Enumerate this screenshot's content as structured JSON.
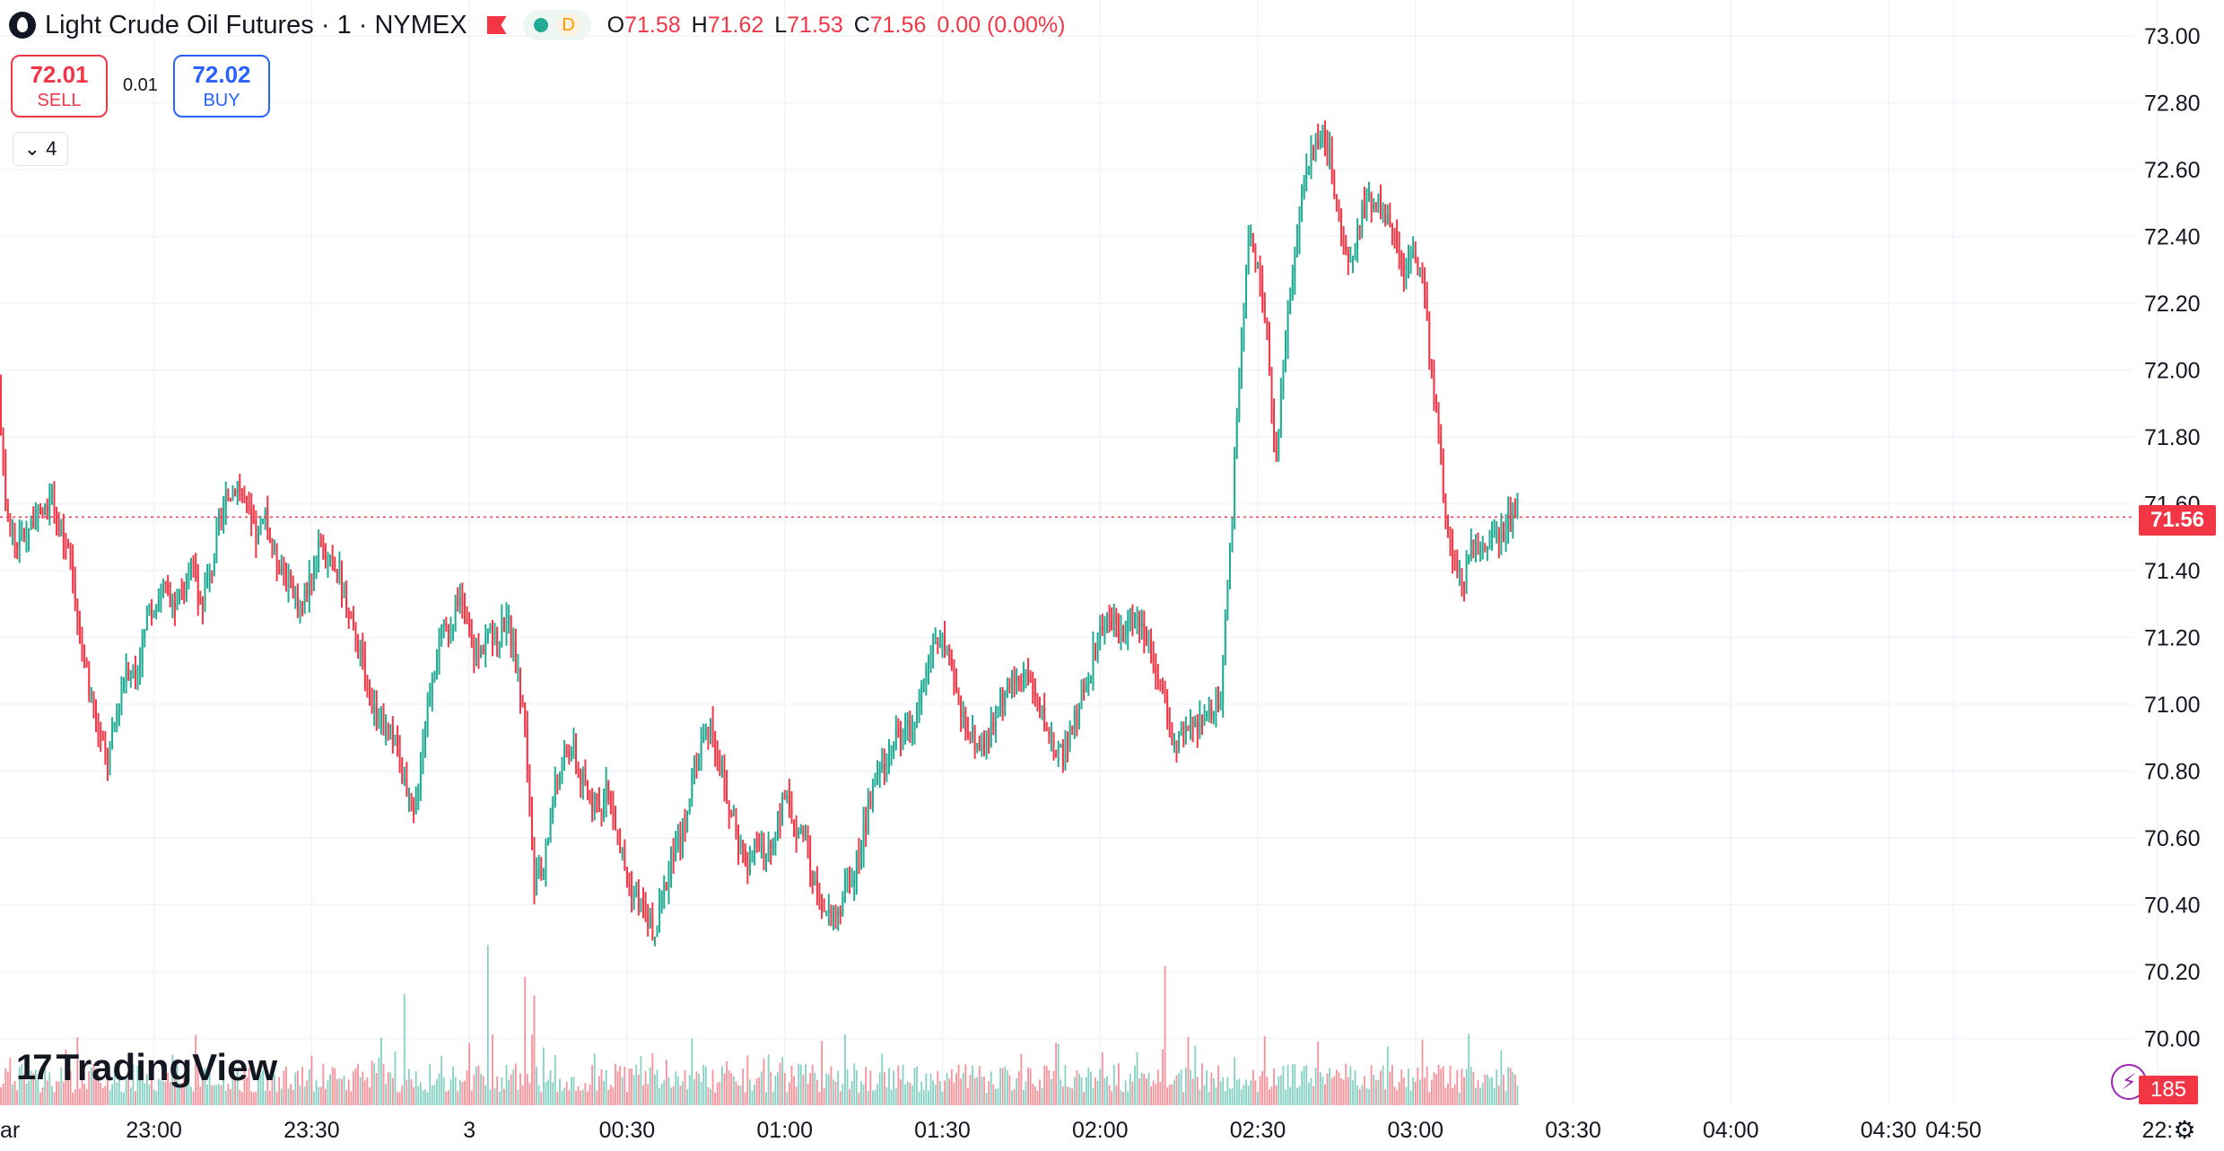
{
  "header": {
    "symbol_title": "Light Crude Oil Futures · 1 · NYMEX",
    "indicator_letter": "D",
    "ohlc": {
      "o_label": "O",
      "o": "71.58",
      "h_label": "H",
      "h": "71.62",
      "l_label": "L",
      "l": "71.53",
      "c_label": "C",
      "c": "71.56",
      "change": "0.00 (0.00%)"
    }
  },
  "trade": {
    "sell_price": "72.01",
    "sell_label": "SELL",
    "spread": "0.01",
    "buy_price": "72.02",
    "buy_label": "BUY"
  },
  "collapse": {
    "count": "4"
  },
  "watermark": "TradingView",
  "last_price_label": "71.56",
  "volume_label": "185",
  "colors": {
    "up": "#22ab94",
    "down": "#f23645",
    "grid": "#f0f3fa",
    "axis_text": "#131722"
  },
  "icons": [
    "oil-drop-icon",
    "flag-icon",
    "chevron-down-icon",
    "lightning-icon",
    "gear-icon"
  ],
  "chart_data": {
    "type": "candlestick",
    "ylim": [
      69.98,
      73.0
    ],
    "y_ticks": [
      "73.00",
      "72.80",
      "72.60",
      "72.40",
      "72.20",
      "72.00",
      "71.80",
      "71.60",
      "71.40",
      "71.20",
      "71.00",
      "70.80",
      "70.60",
      "70.40",
      "70.20",
      "70.00"
    ],
    "x_ticks": [
      "23:00",
      "23:30",
      "3",
      "00:30",
      "01:00",
      "01:30",
      "02:00",
      "02:30",
      "03:00",
      "03:30",
      "04:00",
      "04:30",
      "04:50",
      "22:"
    ],
    "x_tick_values": [
      11,
      28,
      45,
      62,
      79,
      96,
      113,
      130,
      147,
      164,
      181,
      198,
      205,
      227
    ],
    "x_range": [
      -5.6,
      224.4
    ],
    "first_x_label": "ar",
    "current_price": 71.56,
    "anchors": [
      [
        -6,
        72.08
      ],
      [
        -5,
        71.62
      ],
      [
        -4,
        71.48
      ],
      [
        -2,
        71.55
      ],
      [
        0,
        71.6
      ],
      [
        1,
        71.5
      ],
      [
        2,
        71.43
      ],
      [
        3,
        71.2
      ],
      [
        4,
        71.05
      ],
      [
        5,
        70.92
      ],
      [
        6,
        70.83
      ],
      [
        7,
        70.98
      ],
      [
        8,
        71.12
      ],
      [
        9,
        71.08
      ],
      [
        10,
        71.22
      ],
      [
        11,
        71.3
      ],
      [
        12,
        71.35
      ],
      [
        13,
        71.28
      ],
      [
        14,
        71.32
      ],
      [
        15,
        71.45
      ],
      [
        16,
        71.3
      ],
      [
        17,
        71.38
      ],
      [
        18,
        71.52
      ],
      [
        19,
        71.62
      ],
      [
        20,
        71.67
      ],
      [
        21,
        71.58
      ],
      [
        22,
        71.5
      ],
      [
        23,
        71.55
      ],
      [
        24,
        71.45
      ],
      [
        25,
        71.4
      ],
      [
        26,
        71.32
      ],
      [
        27,
        71.3
      ],
      [
        28,
        71.4
      ],
      [
        29,
        71.47
      ],
      [
        30,
        71.42
      ],
      [
        31,
        71.38
      ],
      [
        32,
        71.25
      ],
      [
        33,
        71.18
      ],
      [
        34,
        71.06
      ],
      [
        35,
        70.96
      ],
      [
        36,
        70.92
      ],
      [
        37,
        70.9
      ],
      [
        38,
        70.75
      ],
      [
        39,
        70.65
      ],
      [
        40,
        70.9
      ],
      [
        41,
        71.1
      ],
      [
        42,
        71.2
      ],
      [
        43,
        71.25
      ],
      [
        44,
        71.3
      ],
      [
        45,
        71.2
      ],
      [
        46,
        71.14
      ],
      [
        47,
        71.22
      ],
      [
        48,
        71.18
      ],
      [
        49,
        71.28
      ],
      [
        50,
        71.12
      ],
      [
        51,
        70.95
      ],
      [
        52,
        70.45
      ],
      [
        53,
        70.5
      ],
      [
        54,
        70.72
      ],
      [
        55,
        70.82
      ],
      [
        56,
        70.88
      ],
      [
        57,
        70.78
      ],
      [
        58,
        70.72
      ],
      [
        59,
        70.68
      ],
      [
        60,
        70.75
      ],
      [
        61,
        70.6
      ],
      [
        62,
        70.48
      ],
      [
        63,
        70.42
      ],
      [
        64,
        70.38
      ],
      [
        65,
        70.3
      ],
      [
        66,
        70.45
      ],
      [
        67,
        70.55
      ],
      [
        68,
        70.62
      ],
      [
        69,
        70.78
      ],
      [
        70,
        70.88
      ],
      [
        71,
        70.95
      ],
      [
        72,
        70.82
      ],
      [
        73,
        70.68
      ],
      [
        74,
        70.6
      ],
      [
        75,
        70.52
      ],
      [
        76,
        70.58
      ],
      [
        77,
        70.55
      ],
      [
        78,
        70.62
      ],
      [
        79,
        70.72
      ],
      [
        80,
        70.65
      ],
      [
        81,
        70.6
      ],
      [
        82,
        70.48
      ],
      [
        83,
        70.4
      ],
      [
        84,
        70.36
      ],
      [
        85,
        70.4
      ],
      [
        86,
        70.46
      ],
      [
        87,
        70.55
      ],
      [
        88,
        70.68
      ],
      [
        89,
        70.78
      ],
      [
        90,
        70.85
      ],
      [
        91,
        70.9
      ],
      [
        92,
        70.92
      ],
      [
        93,
        70.95
      ],
      [
        94,
        71.08
      ],
      [
        95,
        71.18
      ],
      [
        96,
        71.2
      ],
      [
        97,
        71.08
      ],
      [
        98,
        70.98
      ],
      [
        99,
        70.92
      ],
      [
        100,
        70.88
      ],
      [
        101,
        70.9
      ],
      [
        102,
        71.0
      ],
      [
        103,
        71.05
      ],
      [
        104,
        71.08
      ],
      [
        105,
        71.1
      ],
      [
        106,
        71.02
      ],
      [
        107,
        70.95
      ],
      [
        108,
        70.88
      ],
      [
        109,
        70.85
      ],
      [
        110,
        70.92
      ],
      [
        111,
        71.02
      ],
      [
        112,
        71.12
      ],
      [
        113,
        71.22
      ],
      [
        114,
        71.25
      ],
      [
        115,
        71.22
      ],
      [
        116,
        71.24
      ],
      [
        117,
        71.28
      ],
      [
        118,
        71.2
      ],
      [
        119,
        71.12
      ],
      [
        120,
        71.0
      ],
      [
        121,
        70.88
      ],
      [
        122,
        70.9
      ],
      [
        123,
        70.92
      ],
      [
        124,
        70.95
      ],
      [
        125,
        70.98
      ],
      [
        126,
        71.0
      ],
      [
        127,
        71.45
      ],
      [
        128,
        72.0
      ],
      [
        129,
        72.4
      ],
      [
        130,
        72.3
      ],
      [
        131,
        72.1
      ],
      [
        132,
        71.7
      ],
      [
        133,
        72.1
      ],
      [
        134,
        72.35
      ],
      [
        135,
        72.55
      ],
      [
        136,
        72.68
      ],
      [
        137,
        72.72
      ],
      [
        138,
        72.6
      ],
      [
        139,
        72.4
      ],
      [
        140,
        72.3
      ],
      [
        141,
        72.45
      ],
      [
        142,
        72.52
      ],
      [
        143,
        72.5
      ],
      [
        144,
        72.45
      ],
      [
        145,
        72.35
      ],
      [
        146,
        72.3
      ],
      [
        147,
        72.35
      ],
      [
        148,
        72.2
      ],
      [
        149,
        71.9
      ],
      [
        150,
        71.65
      ],
      [
        151,
        71.42
      ],
      [
        152,
        71.36
      ],
      [
        153,
        71.48
      ],
      [
        154,
        71.46
      ],
      [
        155,
        71.5
      ],
      [
        156,
        71.52
      ],
      [
        157,
        71.54
      ],
      [
        158,
        71.56
      ]
    ],
    "volume_spikes": [
      [
        38,
        120
      ],
      [
        47,
        210
      ],
      [
        51,
        160
      ],
      [
        52,
        160
      ],
      [
        53,
        78
      ],
      [
        120,
        160
      ],
      [
        160,
        110
      ],
      [
        174,
        122
      ],
      [
        175,
        112
      ],
      [
        180,
        117
      ],
      [
        188,
        74
      ],
      [
        201,
        90
      ]
    ],
    "volume_max": 320
  }
}
